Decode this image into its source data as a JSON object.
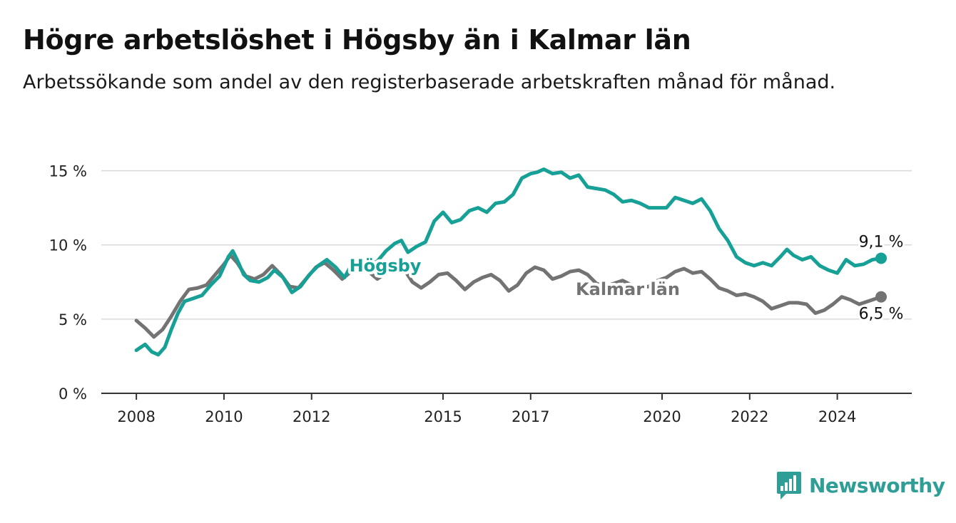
{
  "title": "Högre arbetslöshet i Högsby än i Kalmar län",
  "subtitle": "Arbetssökande som andel av den registerbaserade arbetskraften månad för månad.",
  "brand": {
    "name": "Newsworthy",
    "color": "#2e9e96",
    "icon": "bar-chart-bubble-icon"
  },
  "chart_data": {
    "type": "line",
    "yticks": [
      {
        "value": 0,
        "label": "0 %"
      },
      {
        "value": 5,
        "label": "5 %"
      },
      {
        "value": 10,
        "label": "10 %"
      },
      {
        "value": 15,
        "label": "15 %"
      }
    ],
    "xticks": [
      {
        "value": 2008,
        "label": "2008"
      },
      {
        "value": 2010,
        "label": "2010"
      },
      {
        "value": 2012,
        "label": "2012"
      },
      {
        "value": 2015,
        "label": "2015"
      },
      {
        "value": 2017,
        "label": "2017"
      },
      {
        "value": 2020,
        "label": "2020"
      },
      {
        "value": 2022,
        "label": "2022"
      },
      {
        "value": 2024,
        "label": "2024"
      }
    ],
    "ylim": [
      0,
      15.7
    ],
    "xlim": [
      2007.2,
      2025.7
    ],
    "grid": true,
    "series": [
      {
        "name": "Högsby",
        "color": "#17a096",
        "last_label": "9,1 %",
        "points": [
          [
            2008.0,
            2.9
          ],
          [
            2008.2,
            3.3
          ],
          [
            2008.35,
            2.8
          ],
          [
            2008.5,
            2.6
          ],
          [
            2008.65,
            3.1
          ],
          [
            2008.8,
            4.3
          ],
          [
            2008.95,
            5.4
          ],
          [
            2009.1,
            6.2
          ],
          [
            2009.3,
            6.4
          ],
          [
            2009.5,
            6.6
          ],
          [
            2009.7,
            7.3
          ],
          [
            2009.9,
            7.9
          ],
          [
            2010.1,
            9.2
          ],
          [
            2010.2,
            9.6
          ],
          [
            2010.3,
            9.0
          ],
          [
            2010.45,
            8.0
          ],
          [
            2010.6,
            7.6
          ],
          [
            2010.8,
            7.5
          ],
          [
            2011.0,
            7.8
          ],
          [
            2011.15,
            8.3
          ],
          [
            2011.35,
            7.8
          ],
          [
            2011.55,
            6.8
          ],
          [
            2011.75,
            7.2
          ],
          [
            2011.95,
            8.0
          ],
          [
            2012.15,
            8.6
          ],
          [
            2012.35,
            9.0
          ],
          [
            2012.55,
            8.5
          ],
          [
            2012.75,
            7.8
          ],
          [
            2012.9,
            8.6
          ],
          [
            2013.1,
            8.2
          ],
          [
            2013.3,
            8.6
          ],
          [
            2013.5,
            8.9
          ],
          [
            2013.7,
            9.6
          ],
          [
            2013.9,
            10.1
          ],
          [
            2014.05,
            10.3
          ],
          [
            2014.2,
            9.5
          ],
          [
            2014.4,
            9.9
          ],
          [
            2014.6,
            10.2
          ],
          [
            2014.8,
            11.6
          ],
          [
            2015.0,
            12.2
          ],
          [
            2015.2,
            11.5
          ],
          [
            2015.4,
            11.7
          ],
          [
            2015.6,
            12.3
          ],
          [
            2015.8,
            12.5
          ],
          [
            2016.0,
            12.2
          ],
          [
            2016.2,
            12.8
          ],
          [
            2016.4,
            12.9
          ],
          [
            2016.6,
            13.4
          ],
          [
            2016.8,
            14.5
          ],
          [
            2017.0,
            14.8
          ],
          [
            2017.15,
            14.9
          ],
          [
            2017.3,
            15.1
          ],
          [
            2017.5,
            14.8
          ],
          [
            2017.7,
            14.9
          ],
          [
            2017.9,
            14.5
          ],
          [
            2018.1,
            14.7
          ],
          [
            2018.3,
            13.9
          ],
          [
            2018.5,
            13.8
          ],
          [
            2018.7,
            13.7
          ],
          [
            2018.9,
            13.4
          ],
          [
            2019.1,
            12.9
          ],
          [
            2019.3,
            13.0
          ],
          [
            2019.5,
            12.8
          ],
          [
            2019.7,
            12.5
          ],
          [
            2019.9,
            12.5
          ],
          [
            2020.1,
            12.5
          ],
          [
            2020.3,
            13.2
          ],
          [
            2020.5,
            13.0
          ],
          [
            2020.7,
            12.8
          ],
          [
            2020.9,
            13.1
          ],
          [
            2021.1,
            12.3
          ],
          [
            2021.3,
            11.1
          ],
          [
            2021.5,
            10.3
          ],
          [
            2021.7,
            9.2
          ],
          [
            2021.9,
            8.8
          ],
          [
            2022.1,
            8.6
          ],
          [
            2022.3,
            8.8
          ],
          [
            2022.5,
            8.6
          ],
          [
            2022.7,
            9.2
          ],
          [
            2022.85,
            9.7
          ],
          [
            2023.0,
            9.3
          ],
          [
            2023.2,
            9.0
          ],
          [
            2023.4,
            9.2
          ],
          [
            2023.6,
            8.6
          ],
          [
            2023.8,
            8.3
          ],
          [
            2024.0,
            8.1
          ],
          [
            2024.2,
            9.0
          ],
          [
            2024.4,
            8.6
          ],
          [
            2024.6,
            8.7
          ],
          [
            2024.8,
            9.0
          ],
          [
            2025.0,
            9.1
          ]
        ]
      },
      {
        "name": "Kalmar län",
        "color": "#737373",
        "last_label": "6,5 %",
        "points": [
          [
            2008.0,
            4.9
          ],
          [
            2008.2,
            4.4
          ],
          [
            2008.4,
            3.8
          ],
          [
            2008.6,
            4.3
          ],
          [
            2008.8,
            5.2
          ],
          [
            2009.0,
            6.2
          ],
          [
            2009.2,
            7.0
          ],
          [
            2009.4,
            7.1
          ],
          [
            2009.6,
            7.3
          ],
          [
            2009.8,
            8.0
          ],
          [
            2010.0,
            8.7
          ],
          [
            2010.15,
            9.3
          ],
          [
            2010.3,
            8.8
          ],
          [
            2010.5,
            7.9
          ],
          [
            2010.7,
            7.7
          ],
          [
            2010.9,
            8.0
          ],
          [
            2011.1,
            8.6
          ],
          [
            2011.3,
            8.0
          ],
          [
            2011.5,
            7.2
          ],
          [
            2011.7,
            7.1
          ],
          [
            2011.9,
            7.8
          ],
          [
            2012.1,
            8.5
          ],
          [
            2012.3,
            8.8
          ],
          [
            2012.5,
            8.3
          ],
          [
            2012.7,
            7.7
          ],
          [
            2012.9,
            8.2
          ],
          [
            2013.1,
            8.4
          ],
          [
            2013.3,
            8.2
          ],
          [
            2013.5,
            7.7
          ],
          [
            2013.7,
            8.1
          ],
          [
            2013.9,
            8.4
          ],
          [
            2014.1,
            8.4
          ],
          [
            2014.3,
            7.5
          ],
          [
            2014.5,
            7.1
          ],
          [
            2014.7,
            7.5
          ],
          [
            2014.9,
            8.0
          ],
          [
            2015.1,
            8.1
          ],
          [
            2015.3,
            7.6
          ],
          [
            2015.5,
            7.0
          ],
          [
            2015.7,
            7.5
          ],
          [
            2015.9,
            7.8
          ],
          [
            2016.1,
            8.0
          ],
          [
            2016.3,
            7.6
          ],
          [
            2016.5,
            6.9
          ],
          [
            2016.7,
            7.3
          ],
          [
            2016.9,
            8.1
          ],
          [
            2017.1,
            8.5
          ],
          [
            2017.3,
            8.3
          ],
          [
            2017.5,
            7.7
          ],
          [
            2017.7,
            7.9
          ],
          [
            2017.9,
            8.2
          ],
          [
            2018.1,
            8.3
          ],
          [
            2018.3,
            8.0
          ],
          [
            2018.5,
            7.4
          ],
          [
            2018.7,
            7.2
          ],
          [
            2018.9,
            7.4
          ],
          [
            2019.1,
            7.6
          ],
          [
            2019.3,
            7.3
          ],
          [
            2019.5,
            7.1
          ],
          [
            2019.7,
            7.2
          ],
          [
            2019.9,
            7.6
          ],
          [
            2020.1,
            7.8
          ],
          [
            2020.3,
            8.2
          ],
          [
            2020.5,
            8.4
          ],
          [
            2020.7,
            8.1
          ],
          [
            2020.9,
            8.2
          ],
          [
            2021.1,
            7.7
          ],
          [
            2021.3,
            7.1
          ],
          [
            2021.5,
            6.9
          ],
          [
            2021.7,
            6.6
          ],
          [
            2021.9,
            6.7
          ],
          [
            2022.1,
            6.5
          ],
          [
            2022.3,
            6.2
          ],
          [
            2022.5,
            5.7
          ],
          [
            2022.7,
            5.9
          ],
          [
            2022.9,
            6.1
          ],
          [
            2023.1,
            6.1
          ],
          [
            2023.3,
            6.0
          ],
          [
            2023.5,
            5.4
          ],
          [
            2023.7,
            5.6
          ],
          [
            2023.9,
            6.0
          ],
          [
            2024.1,
            6.5
          ],
          [
            2024.3,
            6.3
          ],
          [
            2024.5,
            6.0
          ],
          [
            2024.7,
            6.2
          ],
          [
            2025.0,
            6.5
          ]
        ]
      }
    ]
  }
}
